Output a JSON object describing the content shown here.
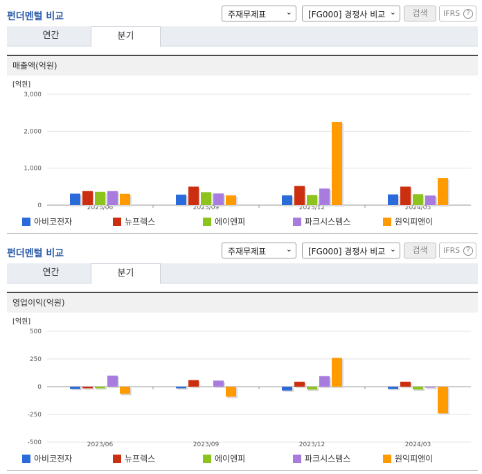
{
  "colors": {
    "series": [
      "#2b6bd9",
      "#cc2e10",
      "#8cc31c",
      "#a87cde",
      "#ff9b00"
    ],
    "grid": "#e3e3e3",
    "axis": "#666666",
    "title": "#2a5aa8"
  },
  "panels": [
    {
      "title": "펀더멘털 비교",
      "select1": "주재무제표",
      "select2": "[FG000] 경쟁사 비교",
      "search_label": "검색",
      "ifrs_label": "IFRS",
      "help_icon": "?",
      "tabs": [
        {
          "label": "연간",
          "active": false
        },
        {
          "label": "분기",
          "active": true
        }
      ],
      "chart_title": "매출액(억원)"
    },
    {
      "title": "펀더멘털 비교",
      "select1": "주재무제표",
      "select2": "[FG000] 경쟁사 비교",
      "search_label": "검색",
      "ifrs_label": "IFRS",
      "help_icon": "?",
      "tabs": [
        {
          "label": "연간",
          "active": false
        },
        {
          "label": "분기",
          "active": true
        }
      ],
      "chart_title": "영업이익(억원)"
    }
  ],
  "chart_data": [
    {
      "type": "bar",
      "title": "매출액(억원)",
      "unit_label": "[억원]",
      "categories": [
        "2023/06",
        "2023/09",
        "2023/12",
        "2024/03"
      ],
      "ylim": [
        0,
        3000
      ],
      "yticks": [
        0,
        1000,
        2000,
        3000
      ],
      "ytick_labels": [
        "0",
        "1,000",
        "2,000",
        "3,000"
      ],
      "grid": true,
      "legend_position": "bottom",
      "series": [
        {
          "name": "아비코전자",
          "values": [
            310,
            285,
            265,
            290
          ]
        },
        {
          "name": "뉴프렉스",
          "values": [
            380,
            500,
            520,
            500
          ]
        },
        {
          "name": "에이엔피",
          "values": [
            360,
            350,
            275,
            295
          ]
        },
        {
          "name": "파크시스템스",
          "values": [
            380,
            315,
            450,
            260
          ]
        },
        {
          "name": "원익피앤이",
          "values": [
            305,
            265,
            2250,
            730
          ]
        }
      ]
    },
    {
      "type": "bar",
      "title": "영업이익(억원)",
      "unit_label": "[억원]",
      "categories": [
        "2023/06",
        "2023/09",
        "2023/12",
        "2024/03"
      ],
      "ylim": [
        -500,
        500
      ],
      "yticks": [
        -500,
        -250,
        0,
        250,
        500
      ],
      "ytick_labels": [
        "-500",
        "-250",
        "0",
        "250",
        "500"
      ],
      "grid": true,
      "legend_position": "bottom",
      "series": [
        {
          "name": "아비코전자",
          "values": [
            -20,
            -15,
            -35,
            -20
          ]
        },
        {
          "name": "뉴프렉스",
          "values": [
            -15,
            60,
            45,
            45
          ]
        },
        {
          "name": "에이엔피",
          "values": [
            -15,
            null,
            -25,
            -25
          ]
        },
        {
          "name": "파크시스템스",
          "values": [
            100,
            55,
            95,
            -10
          ]
        },
        {
          "name": "원익피앤이",
          "values": [
            -65,
            -90,
            260,
            -240
          ]
        }
      ]
    }
  ]
}
